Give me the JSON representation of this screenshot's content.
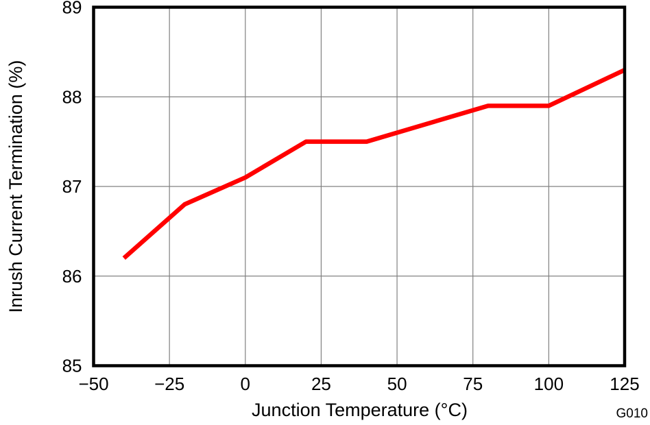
{
  "chart_data": {
    "type": "line",
    "title": "",
    "xlabel": "Junction Temperature (°C)",
    "ylabel": "Inrush Current Termination (%)",
    "x": [
      -40,
      -20,
      0,
      20,
      40,
      80,
      100,
      125
    ],
    "y": [
      86.2,
      86.8,
      87.1,
      87.5,
      87.5,
      87.9,
      87.9,
      88.3
    ],
    "xlim": [
      -50,
      125
    ],
    "ylim": [
      85,
      89
    ],
    "xticks": [
      -50,
      -25,
      0,
      25,
      50,
      75,
      100,
      125
    ],
    "yticks": [
      85,
      86,
      87,
      88,
      89
    ],
    "grid": true,
    "legend": "none",
    "line_color": "#ff0000",
    "grid_color": "#808080",
    "axis_color": "#000000",
    "plot_id": "G010"
  }
}
